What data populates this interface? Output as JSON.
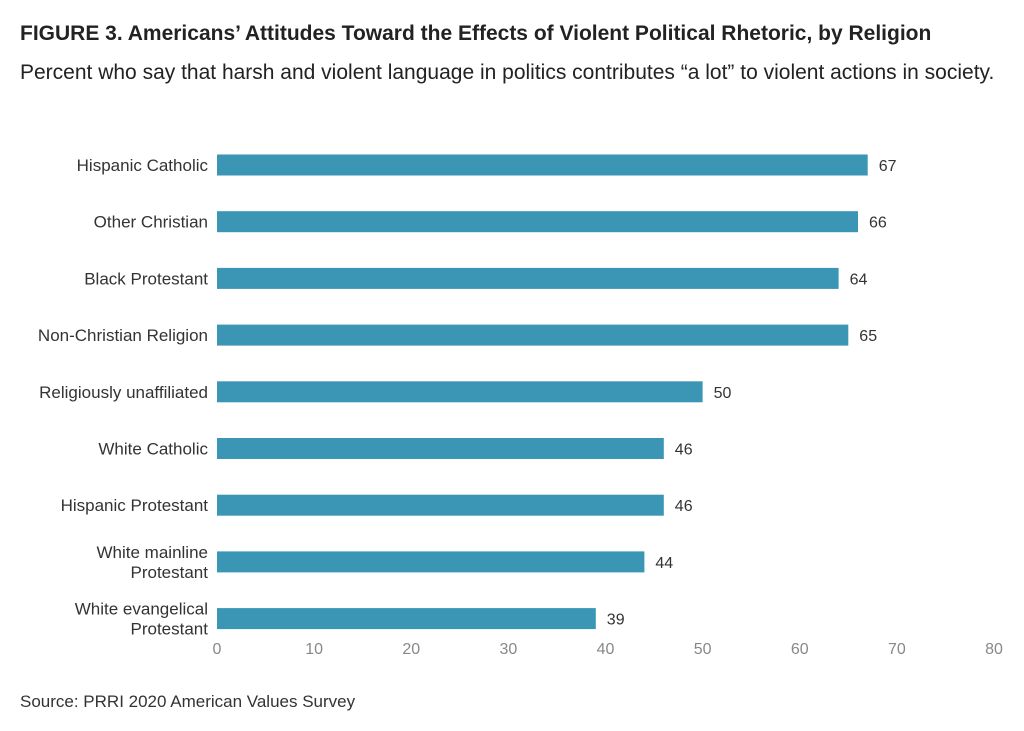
{
  "title": "FIGURE 3. Americans’ Attitudes Toward the Effects of Violent Political Rhetoric, by Religion",
  "subtitle": "Percent who say that harsh and violent language in politics contributes “a lot” to violent actions in society.",
  "source": "Source: PRRI 2020 American Values Survey",
  "chart_data": {
    "type": "bar",
    "orientation": "horizontal",
    "title": "FIGURE 3. Americans’ Attitudes Toward the Effects of Violent Political Rhetoric, by Religion",
    "subtitle": "Percent who say that harsh and violent language in politics contributes “a lot” to violent actions in society.",
    "categories": [
      [
        "Hispanic Catholic"
      ],
      [
        "Other Christian"
      ],
      [
        "Black Protestant"
      ],
      [
        "Non-Christian Religion"
      ],
      [
        "Religiously unaffiliated"
      ],
      [
        "White Catholic"
      ],
      [
        "Hispanic Protestant"
      ],
      [
        "White mainline",
        "Protestant"
      ],
      [
        "White evangelical",
        "Protestant"
      ]
    ],
    "values": [
      67,
      66,
      64,
      65,
      50,
      46,
      46,
      44,
      39
    ],
    "xlim": [
      0,
      80
    ],
    "xticks": [
      0,
      10,
      20,
      30,
      40,
      50,
      60,
      70,
      80
    ],
    "bar_color": "#3a96b4",
    "grid": false,
    "legend": "none"
  }
}
